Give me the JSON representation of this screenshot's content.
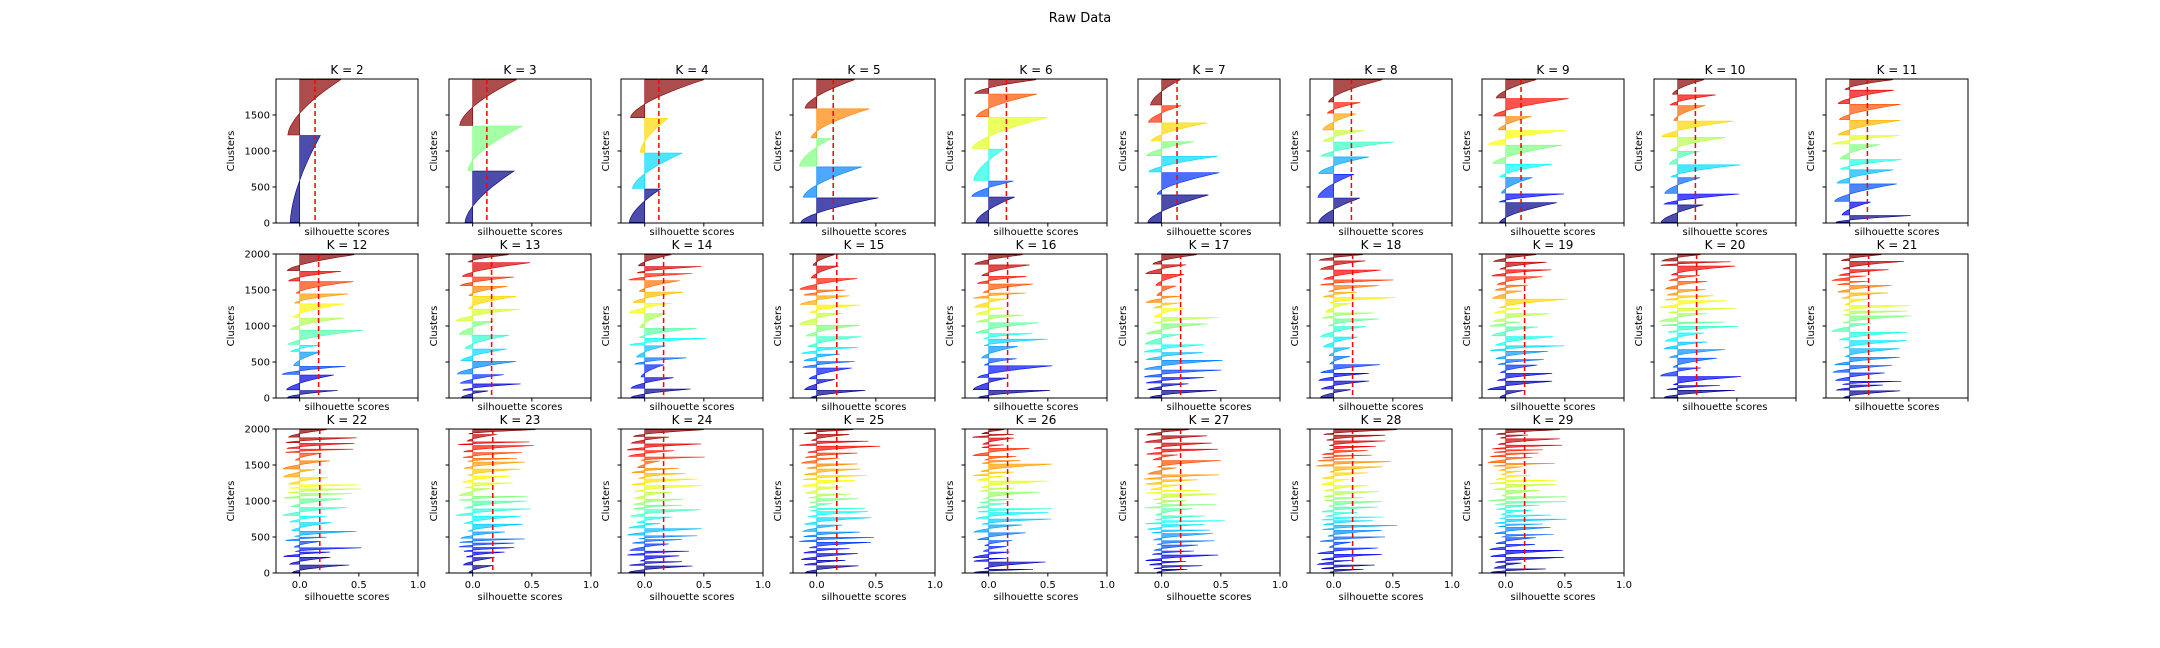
{
  "figure": {
    "title": "Raw Data"
  },
  "chart_data": {
    "type": "silhouette-grid",
    "n_samples": 2000,
    "xlabel": "silhouette scores",
    "ylabel": "Clusters",
    "xlim": [
      -0.2,
      1.0
    ],
    "ylim": [
      0,
      2000
    ],
    "xticks": [
      0.0,
      0.5,
      1.0
    ],
    "xtick_labels": [
      "0.0",
      "0.5",
      "1.0"
    ],
    "yticks_row1": [
      0,
      500,
      1000,
      1500
    ],
    "yticks": [
      0,
      500,
      1000,
      1500,
      2000
    ],
    "colormap": [
      "#00007f",
      "#0000ff",
      "#007fff",
      "#00ffff",
      "#7fff7f",
      "#ffff00",
      "#ff7f00",
      "#ff0000",
      "#7f0000"
    ],
    "avg_line_color": "#ff0000",
    "panels": [
      {
        "k": 2,
        "title": "K = 2",
        "avg": 0.13
      },
      {
        "k": 3,
        "title": "K = 3",
        "avg": 0.12
      },
      {
        "k": 4,
        "title": "K = 4",
        "avg": 0.12
      },
      {
        "k": 5,
        "title": "K = 5",
        "avg": 0.14
      },
      {
        "k": 6,
        "title": "K = 6",
        "avg": 0.15
      },
      {
        "k": 7,
        "title": "K = 7",
        "avg": 0.13
      },
      {
        "k": 8,
        "title": "K = 8",
        "avg": 0.15
      },
      {
        "k": 9,
        "title": "K = 9",
        "avg": 0.13
      },
      {
        "k": 10,
        "title": "K = 10",
        "avg": 0.15
      },
      {
        "k": 11,
        "title": "K = 11",
        "avg": 0.15
      },
      {
        "k": 12,
        "title": "K = 12",
        "avg": 0.16
      },
      {
        "k": 13,
        "title": "K = 13",
        "avg": 0.16
      },
      {
        "k": 14,
        "title": "K = 14",
        "avg": 0.16
      },
      {
        "k": 15,
        "title": "K = 15",
        "avg": 0.17
      },
      {
        "k": 16,
        "title": "K = 16",
        "avg": 0.16
      },
      {
        "k": 17,
        "title": "K = 17",
        "avg": 0.16
      },
      {
        "k": 18,
        "title": "K = 18",
        "avg": 0.16
      },
      {
        "k": 19,
        "title": "K = 19",
        "avg": 0.16
      },
      {
        "k": 20,
        "title": "K = 20",
        "avg": 0.16
      },
      {
        "k": 21,
        "title": "K = 21",
        "avg": 0.16
      },
      {
        "k": 22,
        "title": "K = 22",
        "avg": 0.17
      },
      {
        "k": 23,
        "title": "K = 23",
        "avg": 0.17
      },
      {
        "k": 24,
        "title": "K = 24",
        "avg": 0.16
      },
      {
        "k": 25,
        "title": "K = 25",
        "avg": 0.17
      },
      {
        "k": 26,
        "title": "K = 26",
        "avg": 0.16
      },
      {
        "k": 27,
        "title": "K = 27",
        "avg": 0.16
      },
      {
        "k": 28,
        "title": "K = 28",
        "avg": 0.16
      },
      {
        "k": 29,
        "title": "K = 29",
        "avg": 0.16
      }
    ]
  }
}
